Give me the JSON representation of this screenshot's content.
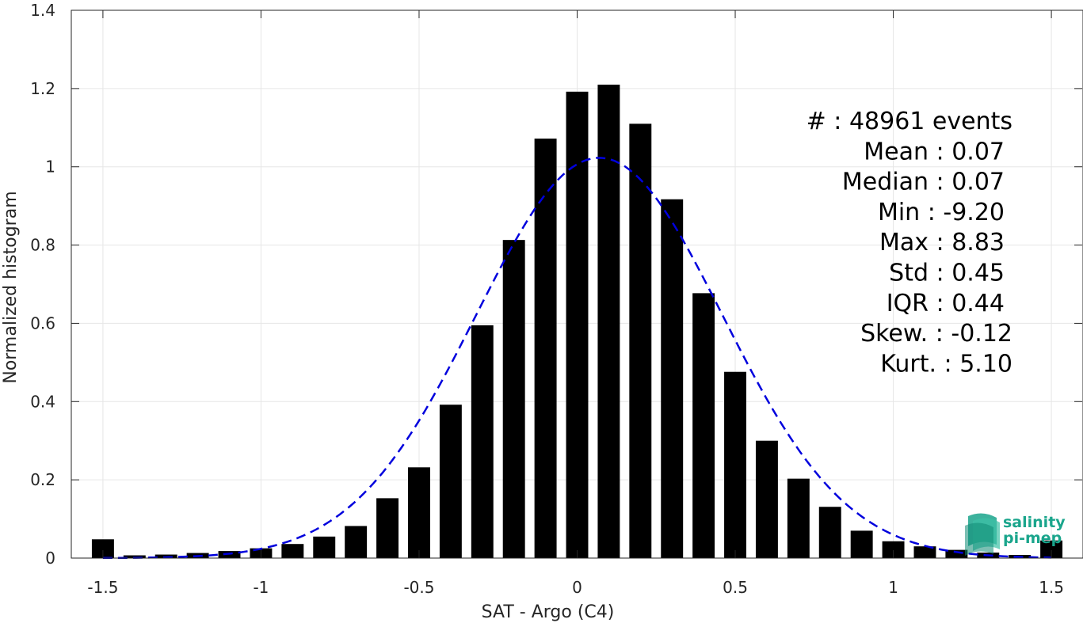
{
  "chart_data": {
    "type": "bar",
    "xlabel": "SAT - Argo (C4)",
    "ylabel": "Normalized histogram",
    "xlim": [
      -1.6,
      1.6
    ],
    "ylim": [
      0,
      1.4
    ],
    "xticks": [
      -1.5,
      -1,
      -0.5,
      0,
      0.5,
      1,
      1.5
    ],
    "xtick_labels": [
      "-1.5",
      "-1",
      "-0.5",
      "0",
      "0.5",
      "1",
      "1.5"
    ],
    "yticks": [
      0,
      0.2,
      0.4,
      0.6,
      0.8,
      1,
      1.2,
      1.4
    ],
    "ytick_labels": [
      "0",
      "0.2",
      "0.4",
      "0.6",
      "0.8",
      "1",
      "1.2",
      "1.4"
    ],
    "grid": true,
    "bar_width": 0.07,
    "bar_color": "#000000",
    "bars": {
      "x": [
        -1.5,
        -1.4,
        -1.3,
        -1.2,
        -1.1,
        -1.0,
        -0.9,
        -0.8,
        -0.7,
        -0.6,
        -0.5,
        -0.4,
        -0.3,
        -0.2,
        -0.1,
        0.0,
        0.1,
        0.2,
        0.3,
        0.4,
        0.5,
        0.6,
        0.7,
        0.8,
        0.9,
        1.0,
        1.1,
        1.2,
        1.3,
        1.4,
        1.5
      ],
      "values": [
        0.048,
        0.007,
        0.009,
        0.013,
        0.018,
        0.025,
        0.036,
        0.055,
        0.082,
        0.153,
        0.232,
        0.392,
        0.595,
        0.813,
        1.072,
        1.192,
        1.21,
        1.11,
        0.917,
        0.677,
        0.476,
        0.3,
        0.203,
        0.131,
        0.07,
        0.043,
        0.03,
        0.021,
        0.014,
        0.008,
        0.045
      ]
    },
    "fit_curve": {
      "type": "gaussian",
      "style": "dashed",
      "color": "#0000dd",
      "mean": 0.07,
      "std": 0.39,
      "x_range": [
        -1.5,
        1.5
      ]
    }
  },
  "stats": [
    {
      "label": "#  : 48961 events"
    },
    {
      "label": "Mean : 0.07"
    },
    {
      "label": "Median : 0.07"
    },
    {
      "label": "Min : -9.20"
    },
    {
      "label": "Max : 8.83"
    },
    {
      "label": "Std : 0.45"
    },
    {
      "label": "IQR : 0.44"
    },
    {
      "label": "Skew. : -0.12"
    },
    {
      "label": "Kurt. : 5.10"
    }
  ],
  "logo": {
    "line1": "salinity",
    "line2": "pi-mep",
    "color": "#1aa58c"
  }
}
